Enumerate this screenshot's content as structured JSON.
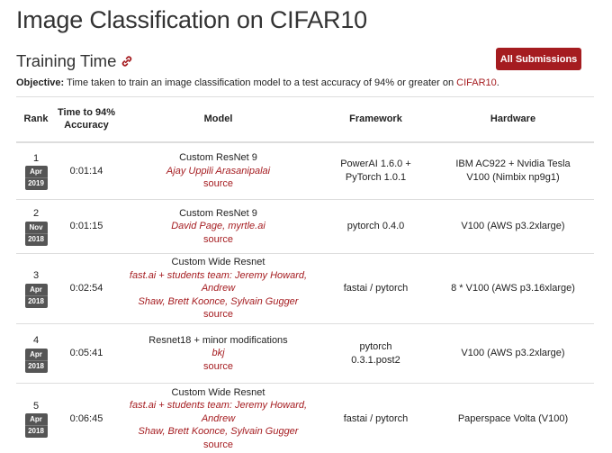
{
  "page": {
    "title": "Image Classification on CIFAR10"
  },
  "section": {
    "title": "Training Time",
    "button_label": "All Submissions",
    "objective_label": "Objective:",
    "objective_text": " Time taken to train an image classification model to a test accuracy of 94% or greater on ",
    "objective_link": "CIFAR10",
    "objective_end": "."
  },
  "colors": {
    "accent": "#a51c20",
    "badge": "#555555"
  },
  "table": {
    "headers": {
      "rank": "Rank",
      "time_line1": "Time to 94%",
      "time_line2": "Accuracy",
      "model": "Model",
      "framework": "Framework",
      "hardware": "Hardware"
    },
    "rows": [
      {
        "rank": "1",
        "month": "Apr",
        "year": "2019",
        "time": "0:01:14",
        "model": "Custom ResNet 9",
        "authors": "Ajay Uppili Arasanipalai",
        "source": "source",
        "framework_l1": "PowerAI 1.6.0 +",
        "framework_l2": "PyTorch 1.0.1",
        "hardware_l1": "IBM AC922 + Nvidia Tesla",
        "hardware_l2": "V100 (Nimbix np9g1)"
      },
      {
        "rank": "2",
        "month": "Nov",
        "year": "2018",
        "time": "0:01:15",
        "model": "Custom ResNet 9",
        "authors": "David Page, myrtle.ai",
        "source": "source",
        "framework_l1": "pytorch 0.4.0",
        "framework_l2": "",
        "hardware_l1": "V100 (AWS p3.2xlarge)",
        "hardware_l2": ""
      },
      {
        "rank": "3",
        "month": "Apr",
        "year": "2018",
        "time": "0:02:54",
        "model": "Custom Wide Resnet",
        "authors_l1": "fast.ai + students team: Jeremy Howard, Andrew",
        "authors_l2": "Shaw, Brett Koonce, Sylvain Gugger",
        "source": "source",
        "framework_l1": "fastai / pytorch",
        "framework_l2": "",
        "hardware_l1": "8 * V100 (AWS p3.16xlarge)",
        "hardware_l2": ""
      },
      {
        "rank": "4",
        "month": "Apr",
        "year": "2018",
        "time": "0:05:41",
        "model": "Resnet18 + minor modifications",
        "authors": "bkj",
        "source": "source",
        "framework_l1": "pytorch",
        "framework_l2": "0.3.1.post2",
        "hardware_l1": "V100 (AWS p3.2xlarge)",
        "hardware_l2": ""
      },
      {
        "rank": "5",
        "month": "Apr",
        "year": "2018",
        "time": "0:06:45",
        "model": "Custom Wide Resnet",
        "authors_l1": "fast.ai + students team: Jeremy Howard, Andrew",
        "authors_l2": "Shaw, Brett Koonce, Sylvain Gugger",
        "source": "source",
        "framework_l1": "fastai / pytorch",
        "framework_l2": "",
        "hardware_l1": "Paperspace Volta (V100)",
        "hardware_l2": ""
      }
    ]
  }
}
